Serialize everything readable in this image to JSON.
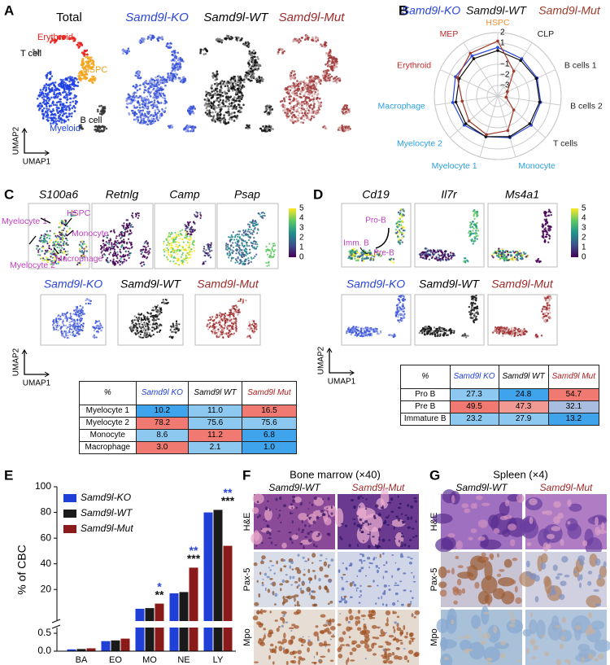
{
  "panel_a": {
    "letter": "A",
    "titles": [
      "Total",
      "Samd9l-KO",
      "Samd9l-WT",
      "Samd9l-Mut"
    ],
    "labels": [
      "Erythroid",
      "T cell",
      "HSPC",
      "B cell",
      "Myeloid"
    ],
    "y_axis": "UMAP2",
    "x_axis": "UMAP1"
  },
  "panel_b": {
    "letter": "B"
  },
  "panel_c": {
    "letter": "C",
    "genes": [
      "S100a6",
      "Retnlg",
      "Camp",
      "Psap"
    ],
    "labels": [
      "Myelocyte 1",
      "HSPC",
      "Monocyte",
      "Myelocyte 2",
      "Macrophage"
    ],
    "colorbar": [
      5,
      4,
      3,
      2,
      1,
      0
    ],
    "titles": [
      "Samd9l-KO",
      "Samd9l-WT",
      "Samd9l-Mut"
    ],
    "y_axis": "UMAP2",
    "x_axis": "UMAP1",
    "table": {
      "header": [
        "%",
        "Samd9l KO",
        "Samd9l WT",
        "Samd9l Mut"
      ],
      "header_colors": [
        "#000000",
        "#1f3fd6",
        "#000000",
        "#b01c1c"
      ],
      "rows": [
        [
          "Myelocyte 1",
          "10.2",
          "11.0",
          "16.5"
        ],
        [
          "Myelocyte 2",
          "78.2",
          "75.6",
          "75.6"
        ],
        [
          "Monocyte",
          "8.6",
          "11.2",
          "6.8"
        ],
        [
          "Macrophage",
          "3.0",
          "2.1",
          "1.0"
        ]
      ],
      "cell_colors": [
        [
          null,
          "#3fa4ec",
          "#8cc8f0",
          "#f07a72"
        ],
        [
          null,
          "#f07a72",
          "#8cc8f0",
          "#8cc8f0"
        ],
        [
          null,
          "#8cc8f0",
          "#f07a72",
          "#3fa4ec"
        ],
        [
          null,
          "#f07a72",
          "#8cc8f0",
          "#3fa4ec"
        ]
      ]
    }
  },
  "panel_d": {
    "letter": "D",
    "genes": [
      "Cd19",
      "Il7r",
      "Ms4a1"
    ],
    "labels": [
      "Pro-B",
      "Imm. B",
      "Pre-B"
    ],
    "colorbar": [
      5,
      4,
      3,
      2,
      1,
      0
    ],
    "titles": [
      "Samd9l-KO",
      "Samd9l-WT",
      "Samd9l-Mut"
    ],
    "y_axis": "UMAP2",
    "x_axis": "UMAP1",
    "table": {
      "header": [
        "%",
        "Samd9l KO",
        "Samd9l WT",
        "Samd9l Mut"
      ],
      "header_colors": [
        "#000000",
        "#1f3fd6",
        "#000000",
        "#b01c1c"
      ],
      "rows": [
        [
          "Pro B",
          "27.3",
          "24.8",
          "54.7"
        ],
        [
          "Pre B",
          "49.5",
          "47.3",
          "32.1"
        ],
        [
          "Immature B",
          "23.2",
          "27.9",
          "13.2"
        ]
      ],
      "cell_colors": [
        [
          null,
          "#8cc8f0",
          "#3fa4ec",
          "#f07a72"
        ],
        [
          null,
          "#f07a72",
          "#f19a94",
          "#a8bde0"
        ],
        [
          null,
          "#8cc8f0",
          "#8cc8f0",
          "#3fa4ec"
        ]
      ]
    }
  },
  "panel_e": {
    "letter": "E"
  },
  "panel_f": {
    "letter": "F",
    "title": "Bone marrow (×40)",
    "columns": [
      "Samd9l-WT",
      "Samd9l-Mut"
    ],
    "rows": [
      "H&E",
      "Pax-5",
      "Mpo"
    ]
  },
  "panel_g": {
    "letter": "G",
    "title": "Spleen (×4)",
    "columns": [
      "Samd9l-WT",
      "Samd9l-Mut"
    ],
    "rows": [
      "H&E",
      "Pax-5",
      "Mpo"
    ]
  },
  "chart_data": [
    {
      "type": "radar",
      "categories": [
        "HSPC",
        "CLP",
        "B cells 1",
        "B cells 2",
        "T cells",
        "Monocyte",
        "Myelocyte 1",
        "Myelocyte 2",
        "Macrophage",
        "Erythroid",
        "MEP"
      ],
      "category_colors": [
        "#f09030",
        "#222222",
        "#222222",
        "#222222",
        "#222222",
        "#2aa0e0",
        "#2aa0e0",
        "#2aa0e0",
        "#2aa0e0",
        "#c0282a",
        "#c0282a"
      ],
      "rlim": [
        -4,
        2
      ],
      "rticks": [
        2,
        1,
        {
          "value": -1,
          "label": "−1"
        },
        {
          "value": -2,
          "label": "−2"
        },
        {
          "value": -3,
          "label": "−3"
        }
      ],
      "series": [
        {
          "name": "Samd9l-KO",
          "color": "#2a45d8",
          "values": [
            0.6,
            0.2,
            0.1,
            0.1,
            0.2,
            0.1,
            0,
            0.2,
            0.3,
            0.4,
            0.5
          ]
        },
        {
          "name": "Samd9l-WT",
          "color": "#111111",
          "values": [
            0.3,
            0,
            0,
            0,
            0,
            0,
            0,
            0,
            0,
            0,
            0.2
          ]
        },
        {
          "name": "Samd9l-Mut",
          "color": "#9e3a2a",
          "values": [
            1.2,
            -1.2,
            -3,
            -3.2,
            -2,
            -0.6,
            -0.2,
            -0.4,
            -0.6,
            0.2,
            0.8
          ]
        }
      ]
    },
    {
      "type": "bar",
      "ylabel": "% of CBC",
      "categories": [
        "BA",
        "EO",
        "MO",
        "NE",
        "LY"
      ],
      "ylim": [
        0,
        100
      ],
      "axis_break": 0.5,
      "yticks": [
        {
          "value": 0,
          "label": "0.0"
        },
        0.5,
        20,
        40,
        60,
        80,
        100
      ],
      "series": [
        {
          "name": "Samd9l-KO",
          "color": "#1f3fd6",
          "values": [
            0.05,
            0.28,
            5,
            17,
            80
          ]
        },
        {
          "name": "Samd9l-WT",
          "color": "#1a1a1a",
          "values": [
            0.06,
            0.3,
            5.5,
            18,
            82
          ]
        },
        {
          "name": "Samd9l-Mut",
          "color": "#8b1a1a",
          "values": [
            0.08,
            0.35,
            9,
            37,
            54
          ]
        }
      ],
      "annotations": [
        {
          "category": "MO",
          "text": "*",
          "color": "#2a45d8"
        },
        {
          "category": "MO",
          "text": "**",
          "color": "#111111"
        },
        {
          "category": "NE",
          "text": "**",
          "color": "#2a45d8"
        },
        {
          "category": "NE",
          "text": "***",
          "color": "#111111"
        },
        {
          "category": "LY",
          "text": "**",
          "color": "#2a45d8"
        },
        {
          "category": "LY",
          "text": "***",
          "color": "#111111"
        }
      ]
    }
  ]
}
